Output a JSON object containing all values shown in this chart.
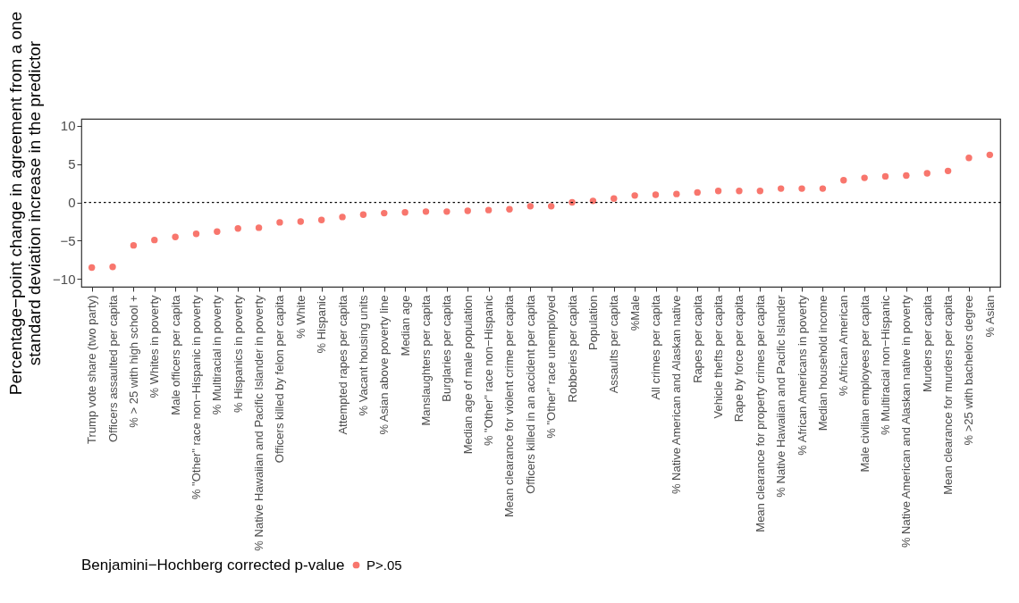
{
  "chart_data": {
    "type": "scatter",
    "ylabel": "Percentage−point change in agreement from a one\nstandard deviation increase in the predictor",
    "legend_title": "Benjamini−Hochberg corrected p-value",
    "categories": [
      "Trump vote share (two party)",
      "Officers assaulted per capita",
      "% > 25 with high school +",
      "% Whites in poverty",
      "Male officers per capita",
      "% \"Other\" race non−Hispanic in poverty",
      "% Multiracial in poverty",
      "% Hispanics in poverty",
      "% Native Hawaiian and Pacific Islander in poverty",
      "Officers killed by felon per capita",
      "% White",
      "% Hispanic",
      "Attempted rapes per capita",
      "% Vacant housing units",
      "% Asian above poverty line",
      "Median age",
      "Manslaughters per capita",
      "Burglaries per capita",
      "Median age of male population",
      "% \"Other\" race non−Hispanic",
      "Mean clearance for violent crime per capita",
      "Officers killed in an accident per capita",
      "% \"Other\" race unemployed",
      "Robberies per capita",
      "Population",
      "Assaults per capita",
      "%Male",
      "All crimes per capita",
      "% Native American and Alaskan native",
      "Rapes per capita",
      "Vehicle thefts per capita",
      "Rape by force per capita",
      "Mean clearance for property crimes per capita",
      "% Native Hawaiian and Pacific Islander",
      "% African Americans in poverty",
      "Median household income",
      "% African American",
      "Male civilian employees per capita",
      "% Multiracial non−Hispanic",
      "% Native American and Alaskan native in poverty",
      "Murders per capita",
      "Mean clearance for murders per capita",
      "% >25 with bachelors degree",
      "% Asian"
    ],
    "series": [
      {
        "name": "P>.05",
        "color": "#f8766d",
        "values": [
          -8.5,
          -8.4,
          -5.6,
          -4.9,
          -4.5,
          -4.1,
          -3.8,
          -3.4,
          -3.3,
          -2.6,
          -2.5,
          -2.3,
          -1.9,
          -1.6,
          -1.4,
          -1.3,
          -1.2,
          -1.2,
          -1.1,
          -1.0,
          -0.9,
          -0.5,
          -0.5,
          0.0,
          0.2,
          0.5,
          0.9,
          1.0,
          1.1,
          1.3,
          1.5,
          1.5,
          1.5,
          1.8,
          1.8,
          1.8,
          2.9,
          3.2,
          3.4,
          3.5,
          3.8,
          4.1,
          5.8,
          6.2
        ]
      }
    ],
    "ylim": [
      -11,
      10.9
    ],
    "yticks": [
      -10,
      -5,
      0,
      5,
      10
    ],
    "ref_lines": [
      {
        "axis": "y",
        "value": 0,
        "line_style": "dotted",
        "color": "#000000"
      }
    ],
    "marker": "circle",
    "legend": "bottom",
    "grid": false
  }
}
